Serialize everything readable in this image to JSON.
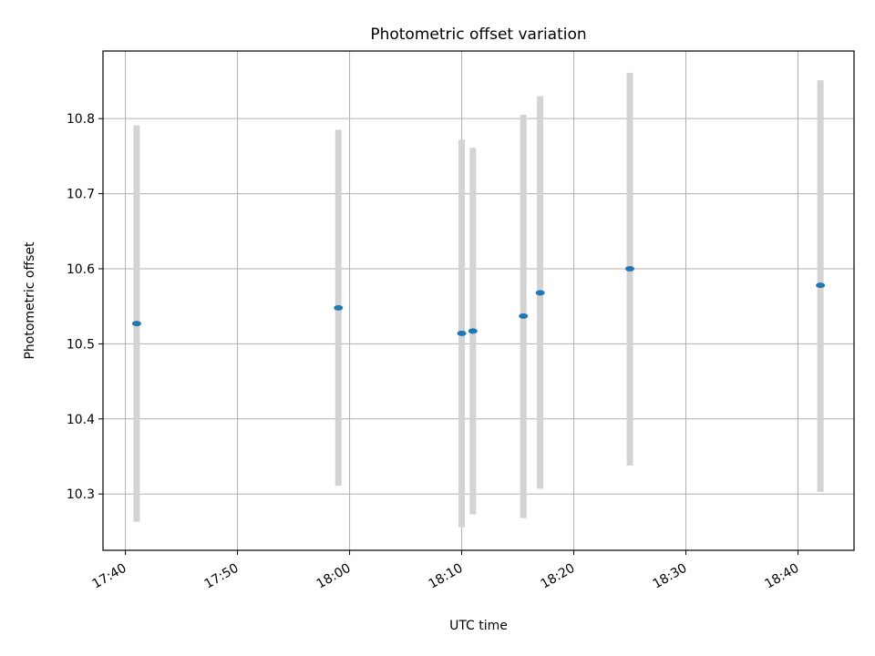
{
  "chart_data": {
    "type": "scatter",
    "title": "Photometric offset variation",
    "xlabel": "UTC time",
    "ylabel": "Photometric offset",
    "x_ticks": [
      "17:40",
      "17:50",
      "18:00",
      "18:10",
      "18:20",
      "18:30",
      "18:40"
    ],
    "y_ticks": [
      "10.3",
      "10.4",
      "10.5",
      "10.6",
      "10.7",
      "10.8"
    ],
    "xlim": [
      "17:38",
      "18:45"
    ],
    "ylim": [
      10.225,
      10.89
    ],
    "grid": true,
    "series": [
      {
        "marker_color": "#1f77b4",
        "errorbar_color": "#d3d3d3",
        "points": [
          {
            "time": "17:41",
            "y": 10.527,
            "y_low": 10.263,
            "y_high": 10.791
          },
          {
            "time": "17:59",
            "y": 10.548,
            "y_low": 10.311,
            "y_high": 10.785
          },
          {
            "time": "18:10",
            "y": 10.514,
            "y_low": 10.256,
            "y_high": 10.772
          },
          {
            "time": "18:11",
            "y": 10.517,
            "y_low": 10.273,
            "y_high": 10.761
          },
          {
            "time": "18:15.5",
            "y": 10.537,
            "y_low": 10.268,
            "y_high": 10.805
          },
          {
            "time": "18:17",
            "y": 10.568,
            "y_low": 10.307,
            "y_high": 10.83
          },
          {
            "time": "18:25",
            "y": 10.6,
            "y_low": 10.338,
            "y_high": 10.861
          },
          {
            "time": "18:42",
            "y": 10.578,
            "y_low": 10.303,
            "y_high": 10.851
          }
        ]
      }
    ]
  }
}
